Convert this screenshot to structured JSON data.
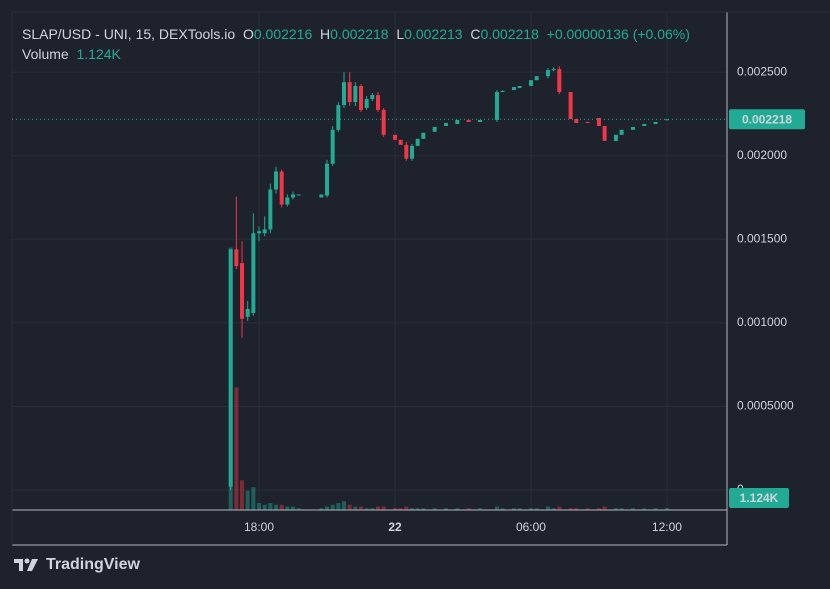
{
  "chart_data": {
    "type": "candlestick",
    "title": "SLAP/USD - UNI, 15, DEXTools.io",
    "legend": {
      "open_label": "O",
      "open": 0.002216,
      "high_label": "H",
      "high": 0.002218,
      "low_label": "L",
      "low": 0.002213,
      "close_label": "C",
      "close": 0.002218,
      "change": "+0.00000136",
      "change_percent": "(+0.06%)",
      "volume_label": "Volume",
      "volume": "1.124K"
    },
    "x": [
      16.75,
      17,
      17.25,
      17.5,
      17.75,
      18,
      18.25,
      18.5,
      18.75,
      19,
      19.25,
      19.5,
      19.75,
      20.75,
      21,
      21.25,
      21.5,
      21.75,
      22,
      22.25,
      22.5,
      22.75,
      23,
      23.25,
      23.5,
      24,
      24.25,
      24.5,
      24.75,
      25,
      25.25,
      25.75,
      26.25,
      26.75,
      27.25,
      27.75,
      28.5,
      28.75,
      29.25,
      29.5,
      30,
      30.25,
      30.75,
      31,
      31.25,
      31.75,
      32,
      32.5,
      33,
      33.25,
      33.75,
      34,
      34.5,
      35,
      35.5,
      36
    ],
    "open": [
      2e-05,
      0.00144,
      0.001357,
      0.001036,
      0.001059,
      0.001536,
      0.001536,
      0.001559,
      0.001798,
      0.001905,
      0.001708,
      0.00175,
      0.001762,
      0.00175,
      0.001762,
      0.001952,
      0.002155,
      0.002303,
      0.00244,
      0.002321,
      0.002417,
      0.002286,
      0.002339,
      0.002363,
      0.002274,
      0.002125,
      0.002095,
      0.002065,
      0.001982,
      0.002059,
      0.002101,
      0.002143,
      0.002178,
      0.00219,
      0.002214,
      0.002202,
      0.002214,
      0.002381,
      0.002393,
      0.002405,
      0.002417,
      0.002452,
      0.002476,
      0.002512,
      0.002518,
      0.002381,
      0.00222,
      0.002202,
      0.002226,
      0.002178,
      0.002089,
      0.002125,
      0.002155,
      0.002178,
      0.00219,
      0.002216
    ],
    "high": [
      0.00144,
      0.001756,
      0.001488,
      0.001131,
      0.001655,
      0.001577,
      0.001637,
      0.001833,
      0.001934,
      0.001917,
      0.001768,
      0.001786,
      0.001768,
      0.001768,
      0.001976,
      0.002178,
      0.002321,
      0.0025,
      0.0025,
      0.00244,
      0.002428,
      0.002357,
      0.002375,
      0.002381,
      0.002286,
      0.002125,
      0.002095,
      0.002083,
      0.002071,
      0.002101,
      0.002137,
      0.002172,
      0.002196,
      0.002214,
      0.002214,
      0.002214,
      0.002393,
      0.002393,
      0.002411,
      0.002417,
      0.002452,
      0.002476,
      0.002524,
      0.00253,
      0.002536,
      0.002381,
      0.00222,
      0.002202,
      0.002226,
      0.002178,
      0.002125,
      0.002155,
      0.002172,
      0.00219,
      0.002202,
      0.002218
    ],
    "low": [
      0,
      0.001321,
      0.000911,
      0.001012,
      0.001042,
      0.001488,
      0.001518,
      0.001536,
      0.001774,
      0.00169,
      0.001696,
      0.001738,
      0.001762,
      0.00175,
      0.00175,
      0.00194,
      0.002143,
      0.002286,
      0.002297,
      0.002297,
      0.002262,
      0.002274,
      0.002327,
      0.002262,
      0.002113,
      0.002095,
      0.002065,
      0.00197,
      0.00197,
      0.002059,
      0.002101,
      0.002143,
      0.002178,
      0.00219,
      0.002202,
      0.002202,
      0.002202,
      0.002381,
      0.002393,
      0.002405,
      0.002417,
      0.002452,
      0.002464,
      0.002506,
      0.002369,
      0.00222,
      0.002196,
      0.002196,
      0.002178,
      0.002089,
      0.002089,
      0.002125,
      0.002155,
      0.002178,
      0.00219,
      0.002213
    ],
    "close": [
      0.00144,
      0.001339,
      0.001024,
      0.001083,
      0.001536,
      0.001548,
      0.001559,
      0.001798,
      0.001905,
      0.001708,
      0.00175,
      0.001768,
      0.001768,
      0.001768,
      0.001952,
      0.002155,
      0.002303,
      0.00244,
      0.002321,
      0.002417,
      0.002274,
      0.002339,
      0.002363,
      0.002274,
      0.002125,
      0.002095,
      0.002065,
      0.001982,
      0.002059,
      0.002101,
      0.002137,
      0.002172,
      0.002196,
      0.002214,
      0.002202,
      0.002214,
      0.002381,
      0.002387,
      0.002411,
      0.002417,
      0.002452,
      0.002476,
      0.002512,
      0.002518,
      0.002381,
      0.00222,
      0.002196,
      0.002196,
      0.002178,
      0.002089,
      0.002125,
      0.002155,
      0.002172,
      0.00219,
      0.002202,
      0.002218
    ],
    "volume": [
      150,
      70,
      17,
      11,
      13,
      4,
      3,
      4,
      3,
      3,
      2,
      2,
      1,
      1,
      2,
      3,
      4,
      5,
      3,
      2,
      2,
      1,
      1,
      2,
      2,
      1,
      1,
      2,
      1,
      1,
      1,
      1,
      1,
      1,
      1,
      1,
      2,
      1,
      1,
      1,
      1,
      1,
      2,
      1,
      2,
      1,
      1,
      1,
      1,
      2,
      1,
      1,
      1,
      1,
      1,
      1.124
    ],
    "volume_lim": [
      0,
      200
    ],
    "up_color": "#22ab94",
    "down_color": "#f23645",
    "xlim": [
      7.1,
      38.65
    ],
    "xticks": [
      {
        "value": 18,
        "label": "18:00"
      },
      {
        "value": 24,
        "label": "22"
      },
      {
        "value": 30,
        "label": "06:00"
      },
      {
        "value": 36,
        "label": "12:00"
      }
    ],
    "ylim": [
      -0.00012,
      0.00286
    ],
    "yticks": [
      0,
      {
        "value": 0.0005,
        "label": "0.0005000"
      },
      {
        "value": 0.001,
        "label": "0.001000"
      },
      {
        "value": 0.0015,
        "label": "0.001500"
      },
      {
        "value": 0.002,
        "label": "0.002000"
      },
      {
        "value": 0.0025,
        "label": "0.002500"
      }
    ],
    "grid": true,
    "branding": "TradingView"
  }
}
